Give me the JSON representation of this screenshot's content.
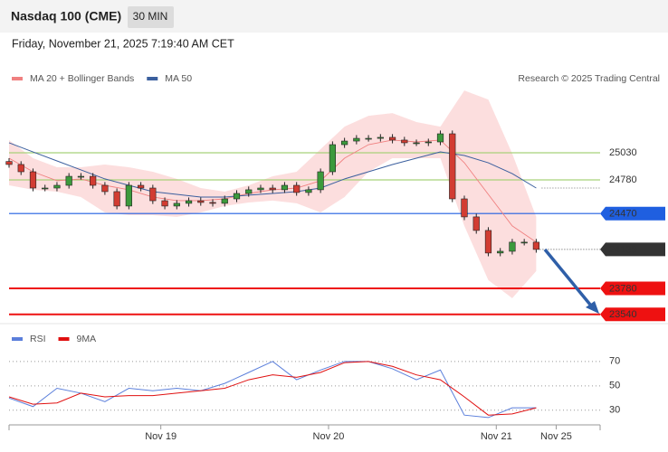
{
  "header": {
    "title": "Nasdaq 100 (CME)",
    "timeframe": "30 MIN",
    "timestamp": "Friday, November 21, 2025 7:19:40 AM CET",
    "credit": "Research © 2025 Trading Central"
  },
  "chart_data": [
    {
      "type": "candlestick",
      "xlim": [
        0,
        148
      ],
      "ylim": [
        23480,
        25955
      ],
      "x": [
        0,
        3,
        6,
        9,
        12,
        15,
        18,
        21,
        24,
        27,
        30,
        33,
        36,
        39,
        42,
        45,
        48,
        51,
        54,
        57,
        60,
        63,
        66,
        69,
        72,
        75,
        78,
        81,
        84,
        87,
        90,
        93,
        96,
        99,
        102,
        105,
        108,
        111,
        114,
        117,
        120,
        123,
        126,
        129,
        132
      ],
      "open": [
        24950,
        24922,
        24855,
        24705,
        24705,
        24730,
        24813,
        24813,
        24730,
        24672,
        24539,
        24730,
        24705,
        24588,
        24539,
        24564,
        24588,
        24572,
        24564,
        24605,
        24655,
        24689,
        24705,
        24689,
        24730,
        24664,
        24689,
        24855,
        25105,
        25138,
        25163,
        25163,
        25172,
        25147,
        25122,
        25122,
        25130,
        25205,
        24605,
        24439,
        24314,
        24106,
        24122,
        24206,
        24206
      ],
      "high": [
        24980,
        24952,
        24885,
        24735,
        24760,
        24843,
        24843,
        24843,
        24760,
        24702,
        24760,
        24760,
        24735,
        24618,
        24594,
        24618,
        24618,
        24602,
        24635,
        24685,
        24719,
        24735,
        24735,
        24760,
        24760,
        24719,
        24885,
        25135,
        25168,
        25193,
        25193,
        25202,
        25202,
        25177,
        25152,
        25160,
        25235,
        25235,
        24635,
        24469,
        24344,
        24152,
        24236,
        24236,
        24236
      ],
      "low": [
        24892,
        24825,
        24675,
        24675,
        24675,
        24700,
        24783,
        24700,
        24642,
        24509,
        24509,
        24675,
        24558,
        24509,
        24509,
        24534,
        24542,
        24534,
        24534,
        24575,
        24625,
        24659,
        24659,
        24659,
        24634,
        24634,
        24659,
        24825,
        25075,
        25108,
        25133,
        25133,
        25117,
        25092,
        25092,
        25092,
        25100,
        24575,
        24409,
        24284,
        24076,
        24076,
        24092,
        24176,
        24109
      ],
      "close": [
        24922,
        24855,
        24705,
        24705,
        24730,
        24813,
        24813,
        24730,
        24672,
        24539,
        24730,
        24705,
        24588,
        24539,
        24564,
        24588,
        24572,
        24564,
        24605,
        24655,
        24689,
        24705,
        24689,
        24730,
        24664,
        24689,
        24855,
        25105,
        25138,
        25163,
        25163,
        25172,
        25147,
        25122,
        25122,
        25130,
        25205,
        24605,
        24439,
        24314,
        24106,
        24122,
        24206,
        24206,
        24139
      ],
      "up_color": "#3c9a3c",
      "down_color": "#d23c32",
      "overlays": {
        "x": [
          0,
          6,
          12,
          18,
          24,
          30,
          36,
          42,
          48,
          54,
          60,
          66,
          72,
          78,
          84,
          90,
          96,
          102,
          108,
          114,
          120,
          126,
          132
        ],
        "series": [
          {
            "name": "MA 20 + Bollinger Bands",
            "color": "#f08080",
            "band_color": "#fbd3d3",
            "values": [
              24980,
              24855,
              24772,
              24789,
              24730,
              24689,
              24622,
              24589,
              24589,
              24605,
              24655,
              24689,
              24705,
              24772,
              24980,
              25105,
              25147,
              25130,
              25147,
              24938,
              24647,
              24356,
              24206
            ],
            "upper": [
              25147,
              24980,
              24897,
              24897,
              24922,
              24897,
              24855,
              24789,
              24705,
              24672,
              24730,
              24813,
              24855,
              25063,
              25271,
              25371,
              25396,
              25313,
              25271,
              25604,
              25521,
              25022,
              24439
            ],
            "lower": [
              24730,
              24689,
              24672,
              24622,
              24480,
              24455,
              24455,
              24439,
              24480,
              24539,
              24572,
              24589,
              24564,
              24480,
              24622,
              24855,
              24980,
              24980,
              24980,
              24356,
              23856,
              23689,
              23939
            ]
          },
          {
            "name": "MA 50",
            "color": "#3b5f9e",
            "values": [
              25122,
              25038,
              24955,
              24872,
              24789,
              24730,
              24672,
              24647,
              24622,
              24622,
              24639,
              24655,
              24672,
              24705,
              24789,
              24855,
              24922,
              24980,
              25038,
              25005,
              24938,
              24838,
              24705
            ]
          }
        ]
      },
      "levels": [
        {
          "value": 25030,
          "color": "#a8d27a",
          "style": "text"
        },
        {
          "value": 24780,
          "color": "#a8d27a",
          "style": "text"
        },
        {
          "value": 24470,
          "color": "#1f5fe0",
          "style": "box"
        },
        {
          "value": 24139,
          "color": "#333333",
          "style": "dotted"
        },
        {
          "value": 23780,
          "color": "#ee1111",
          "style": "thick"
        },
        {
          "value": 23540,
          "color": "#ee1111",
          "style": "thick"
        }
      ]
    },
    {
      "type": "line",
      "xlim": [
        0,
        148
      ],
      "ylim": [
        18,
        81
      ],
      "yticks": [
        30,
        50,
        70
      ],
      "xticks": [
        {
          "value": 38,
          "label": "Nov 19"
        },
        {
          "value": 80,
          "label": "Nov 20"
        },
        {
          "value": 122,
          "label": "Nov 21"
        },
        {
          "value": 137,
          "label": "Nov 25"
        }
      ],
      "x": [
        0,
        6,
        12,
        18,
        24,
        30,
        36,
        42,
        48,
        54,
        60,
        66,
        72,
        78,
        84,
        90,
        96,
        102,
        108,
        114,
        120,
        126,
        132
      ],
      "series": [
        {
          "name": "RSI",
          "color": "#5b7fdb",
          "values": [
            40,
            33,
            48,
            44,
            37,
            48,
            46,
            48,
            46,
            52,
            61,
            70,
            55,
            63,
            70,
            70,
            64,
            55,
            63,
            26,
            24,
            32,
            32
          ]
        },
        {
          "name": "9MA",
          "color": "#e01010",
          "values": [
            41,
            35,
            36,
            44,
            41,
            42,
            42,
            44,
            46,
            48,
            55,
            59,
            57,
            61,
            69,
            70,
            66,
            59,
            55,
            41,
            26,
            27,
            32
          ]
        }
      ]
    }
  ]
}
